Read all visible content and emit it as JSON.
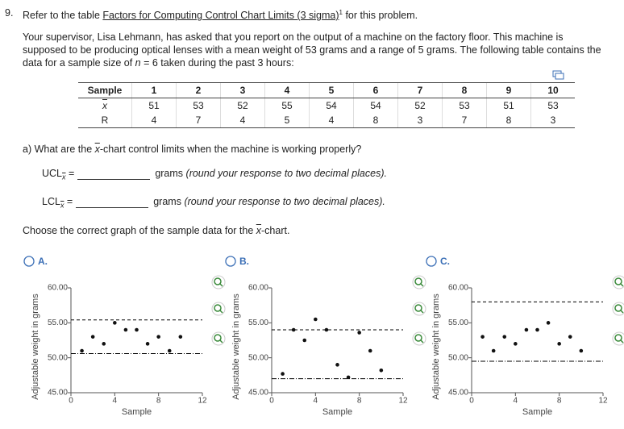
{
  "question": {
    "number": "9.",
    "intro_before": "Refer to the table ",
    "link": "Factors for Computing Control Chart Limits (3 sigma)",
    "footnote": "1",
    "intro_after": " for this problem.",
    "paragraph_before": "Your supervisor, Lisa Lehmann, has asked that you report on the output of a machine on the factory floor. This machine is supposed to be producing optical lenses with a mean weight of 53 grams and a range of 5 grams. The following table contains the data for a sample size of ",
    "n_symbol": "n",
    "paragraph_after": " = 6 taken during the past 3 hours:"
  },
  "table": {
    "header": "Sample",
    "row_labels": [
      "x",
      "R"
    ],
    "samples": [
      1,
      2,
      3,
      4,
      5,
      6,
      7,
      8,
      9,
      10
    ],
    "xbar": [
      51,
      53,
      52,
      55,
      54,
      54,
      52,
      53,
      51,
      53
    ],
    "range": [
      4,
      7,
      4,
      5,
      4,
      8,
      3,
      7,
      8,
      3
    ]
  },
  "part_a": {
    "question_before": "a) What are the ",
    "question_symbol": "x",
    "question_after": "-chart control limits when the machine is working properly?",
    "ucl": {
      "label": "UCL",
      "subscript": "x",
      "equals": "=",
      "unit": "grams",
      "hint": "(round your response to two decimal places)."
    },
    "lcl": {
      "label": "LCL",
      "subscript": "x",
      "equals": "=",
      "unit": "grams",
      "hint": "(round your response to two decimal places)."
    }
  },
  "choose": {
    "before": "Choose the correct graph of the sample data for the ",
    "symbol": "x",
    "after": "-chart."
  },
  "graphs": [
    {
      "option": "A.",
      "y_label": "Adjustable weight in grams",
      "x_label": "Sample",
      "xlim": [
        0,
        12
      ],
      "ylim": [
        45,
        60
      ],
      "xticks": [
        0,
        4,
        8,
        12
      ],
      "yticks": [
        {
          "value": 45,
          "label": "45.00"
        },
        {
          "value": 50,
          "label": "50.00"
        },
        {
          "value": 55,
          "label": "55.00"
        },
        {
          "value": 60,
          "label": "60.00"
        }
      ],
      "x": [
        1,
        2,
        3,
        4,
        5,
        6,
        7,
        8,
        9,
        10
      ],
      "y": [
        51,
        53,
        52,
        55,
        54,
        54,
        52,
        53,
        51,
        53
      ],
      "ucl": 55.42,
      "lcl": 50.59
    },
    {
      "option": "B.",
      "y_label": "Adjustable weight in grams",
      "x_label": "Sample",
      "xlim": [
        0,
        12
      ],
      "ylim": [
        45,
        60
      ],
      "xticks": [
        0,
        4,
        8,
        12
      ],
      "yticks": [
        {
          "value": 45,
          "label": "45.00"
        },
        {
          "value": 50,
          "label": "50.00"
        },
        {
          "value": 55,
          "label": "55.00"
        },
        {
          "value": 60,
          "label": "60.00"
        }
      ],
      "x": [
        1,
        2,
        3,
        4,
        5,
        6,
        7,
        8,
        9,
        10
      ],
      "y": [
        47.7,
        54,
        52.5,
        55.5,
        54,
        49,
        47.2,
        53.6,
        51,
        48.2
      ],
      "ucl": 54,
      "lcl": 47
    },
    {
      "option": "C.",
      "y_label": "Adjustable weight in grams",
      "x_label": "Sample",
      "xlim": [
        0,
        12
      ],
      "ylim": [
        45,
        60
      ],
      "xticks": [
        0,
        4,
        8,
        12
      ],
      "yticks": [
        {
          "value": 45,
          "label": "45.00"
        },
        {
          "value": 50,
          "label": "50.00"
        },
        {
          "value": 55,
          "label": "55.00"
        },
        {
          "value": 60,
          "label": "60.00"
        }
      ],
      "x": [
        1,
        2,
        3,
        4,
        5,
        6,
        7,
        8,
        9,
        10
      ],
      "y": [
        53,
        51,
        53,
        52,
        54,
        54,
        55,
        52,
        53,
        51
      ],
      "ucl": 58,
      "lcl": 49.5
    }
  ]
}
